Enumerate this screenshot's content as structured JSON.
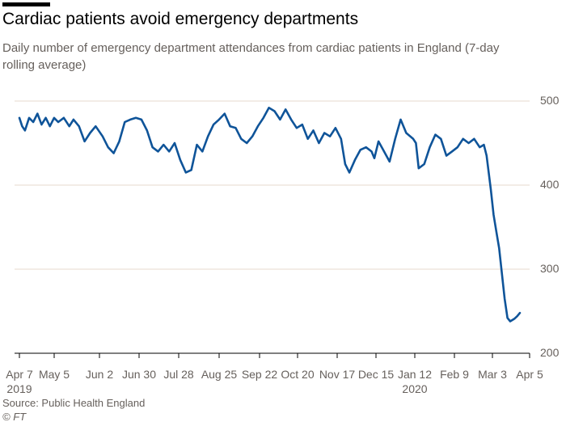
{
  "title": "Cardiac patients avoid emergency departments",
  "subtitle": "Daily number of emergency department attendances from cardiac patients in England (7-day rolling average)",
  "source": "Source: Public Health England",
  "credit": "© FT",
  "colors": {
    "line": "#0f5499",
    "grid": "#e7d9cc",
    "axis": "#66605c",
    "text": "#66605c"
  },
  "chart_data": {
    "type": "line",
    "x_ticks": [
      "Apr 7",
      "May 5",
      "Jun 2",
      "Jun 30",
      "Jul 28",
      "Aug 25",
      "Sep 22",
      "Oct 20",
      "Nov 17",
      "Dec 15",
      "Jan 12",
      "Feb 9",
      "Mar 3",
      "Apr 5"
    ],
    "x_tick_years": {
      "0": "2019",
      "10": "2020"
    },
    "y_ticks": [
      200,
      300,
      400,
      500
    ],
    "ylim": [
      200,
      500
    ],
    "xlim": [
      "2019-04-03",
      "2020-04-05"
    ],
    "grid": true,
    "series": [
      {
        "points": [
          [
            "2019-04-03",
            480
          ],
          [
            "2019-04-05",
            470
          ],
          [
            "2019-04-07",
            465
          ],
          [
            "2019-04-10",
            480
          ],
          [
            "2019-04-13",
            475
          ],
          [
            "2019-04-16",
            485
          ],
          [
            "2019-04-19",
            472
          ],
          [
            "2019-04-22",
            480
          ],
          [
            "2019-04-25",
            470
          ],
          [
            "2019-04-28",
            480
          ],
          [
            "2019-05-01",
            475
          ],
          [
            "2019-05-05",
            480
          ],
          [
            "2019-05-09",
            470
          ],
          [
            "2019-05-12",
            478
          ],
          [
            "2019-05-16",
            470
          ],
          [
            "2019-05-20",
            452
          ],
          [
            "2019-05-24",
            462
          ],
          [
            "2019-05-28",
            470
          ],
          [
            "2019-06-02",
            458
          ],
          [
            "2019-06-06",
            445
          ],
          [
            "2019-06-10",
            438
          ],
          [
            "2019-06-14",
            452
          ],
          [
            "2019-06-18",
            475
          ],
          [
            "2019-06-22",
            478
          ],
          [
            "2019-06-26",
            480
          ],
          [
            "2019-06-30",
            478
          ],
          [
            "2019-07-04",
            465
          ],
          [
            "2019-07-08",
            445
          ],
          [
            "2019-07-12",
            440
          ],
          [
            "2019-07-16",
            448
          ],
          [
            "2019-07-20",
            440
          ],
          [
            "2019-07-24",
            450
          ],
          [
            "2019-07-28",
            430
          ],
          [
            "2019-08-01",
            415
          ],
          [
            "2019-08-05",
            418
          ],
          [
            "2019-08-09",
            448
          ],
          [
            "2019-08-13",
            440
          ],
          [
            "2019-08-17",
            458
          ],
          [
            "2019-08-21",
            472
          ],
          [
            "2019-08-25",
            478
          ],
          [
            "2019-08-29",
            485
          ],
          [
            "2019-09-02",
            470
          ],
          [
            "2019-09-06",
            468
          ],
          [
            "2019-09-10",
            455
          ],
          [
            "2019-09-14",
            450
          ],
          [
            "2019-09-18",
            458
          ],
          [
            "2019-09-22",
            470
          ],
          [
            "2019-09-26",
            480
          ],
          [
            "2019-09-30",
            492
          ],
          [
            "2019-10-04",
            488
          ],
          [
            "2019-10-08",
            478
          ],
          [
            "2019-10-12",
            490
          ],
          [
            "2019-10-16",
            478
          ],
          [
            "2019-10-20",
            468
          ],
          [
            "2019-10-24",
            472
          ],
          [
            "2019-10-28",
            455
          ],
          [
            "2019-11-01",
            465
          ],
          [
            "2019-11-05",
            450
          ],
          [
            "2019-11-09",
            462
          ],
          [
            "2019-11-13",
            458
          ],
          [
            "2019-11-17",
            468
          ],
          [
            "2019-11-21",
            455
          ],
          [
            "2019-11-24",
            425
          ],
          [
            "2019-11-27",
            415
          ],
          [
            "2019-12-01",
            430
          ],
          [
            "2019-12-05",
            442
          ],
          [
            "2019-12-09",
            445
          ],
          [
            "2019-12-13",
            440
          ],
          [
            "2019-12-15",
            432
          ],
          [
            "2019-12-18",
            452
          ],
          [
            "2019-12-22",
            440
          ],
          [
            "2019-12-26",
            428
          ],
          [
            "2019-12-30",
            455
          ],
          [
            "2020-01-03",
            478
          ],
          [
            "2020-01-07",
            462
          ],
          [
            "2020-01-12",
            455
          ],
          [
            "2020-01-14",
            450
          ],
          [
            "2020-01-16",
            420
          ],
          [
            "2020-01-20",
            425
          ],
          [
            "2020-01-24",
            445
          ],
          [
            "2020-01-28",
            460
          ],
          [
            "2020-02-01",
            455
          ],
          [
            "2020-02-05",
            435
          ],
          [
            "2020-02-09",
            440
          ],
          [
            "2020-02-13",
            445
          ],
          [
            "2020-02-17",
            455
          ],
          [
            "2020-02-21",
            450
          ],
          [
            "2020-02-25",
            455
          ],
          [
            "2020-02-29",
            445
          ],
          [
            "2020-03-03",
            448
          ],
          [
            "2020-03-05",
            435
          ],
          [
            "2020-03-08",
            395
          ],
          [
            "2020-03-10",
            365
          ],
          [
            "2020-03-12",
            345
          ],
          [
            "2020-03-14",
            325
          ],
          [
            "2020-03-16",
            295
          ],
          [
            "2020-03-18",
            265
          ],
          [
            "2020-03-20",
            242
          ],
          [
            "2020-03-22",
            238
          ],
          [
            "2020-03-25",
            241
          ],
          [
            "2020-03-27",
            244
          ],
          [
            "2020-03-29",
            248
          ]
        ]
      }
    ]
  }
}
